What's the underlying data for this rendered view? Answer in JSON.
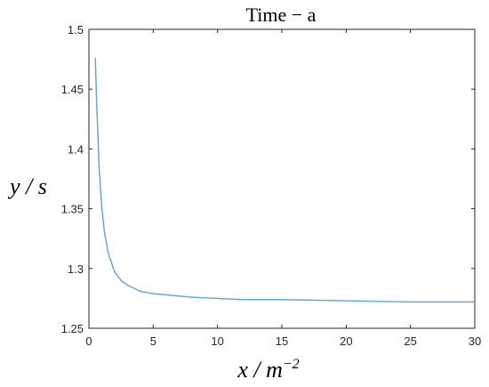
{
  "chart_data": {
    "type": "line",
    "title": "Time − a",
    "xlabel": "x / m",
    "xlabel_sup": "−2",
    "ylabel": "y / s",
    "xlim": [
      0,
      30
    ],
    "ylim": [
      1.25,
      1.5
    ],
    "xticks": [
      "0",
      "5",
      "10",
      "15",
      "20",
      "25",
      "30"
    ],
    "yticks": [
      "1.25",
      "1.3",
      "1.35",
      "1.4",
      "1.45",
      "1.5"
    ],
    "grid": false,
    "color": "#5aa6d8",
    "series": [
      {
        "x": [
          0.5,
          0.6,
          0.8,
          1.0,
          1.2,
          1.5,
          2.0,
          2.5,
          3.0,
          4.0,
          5.0,
          6.0,
          8.0,
          10.0,
          12.0,
          15.0,
          20.0,
          25.0,
          30.0
        ],
        "y": [
          1.476,
          1.439,
          1.383,
          1.351,
          1.331,
          1.313,
          1.297,
          1.29,
          1.286,
          1.281,
          1.279,
          1.278,
          1.276,
          1.275,
          1.274,
          1.274,
          1.273,
          1.272,
          1.272
        ]
      }
    ]
  }
}
